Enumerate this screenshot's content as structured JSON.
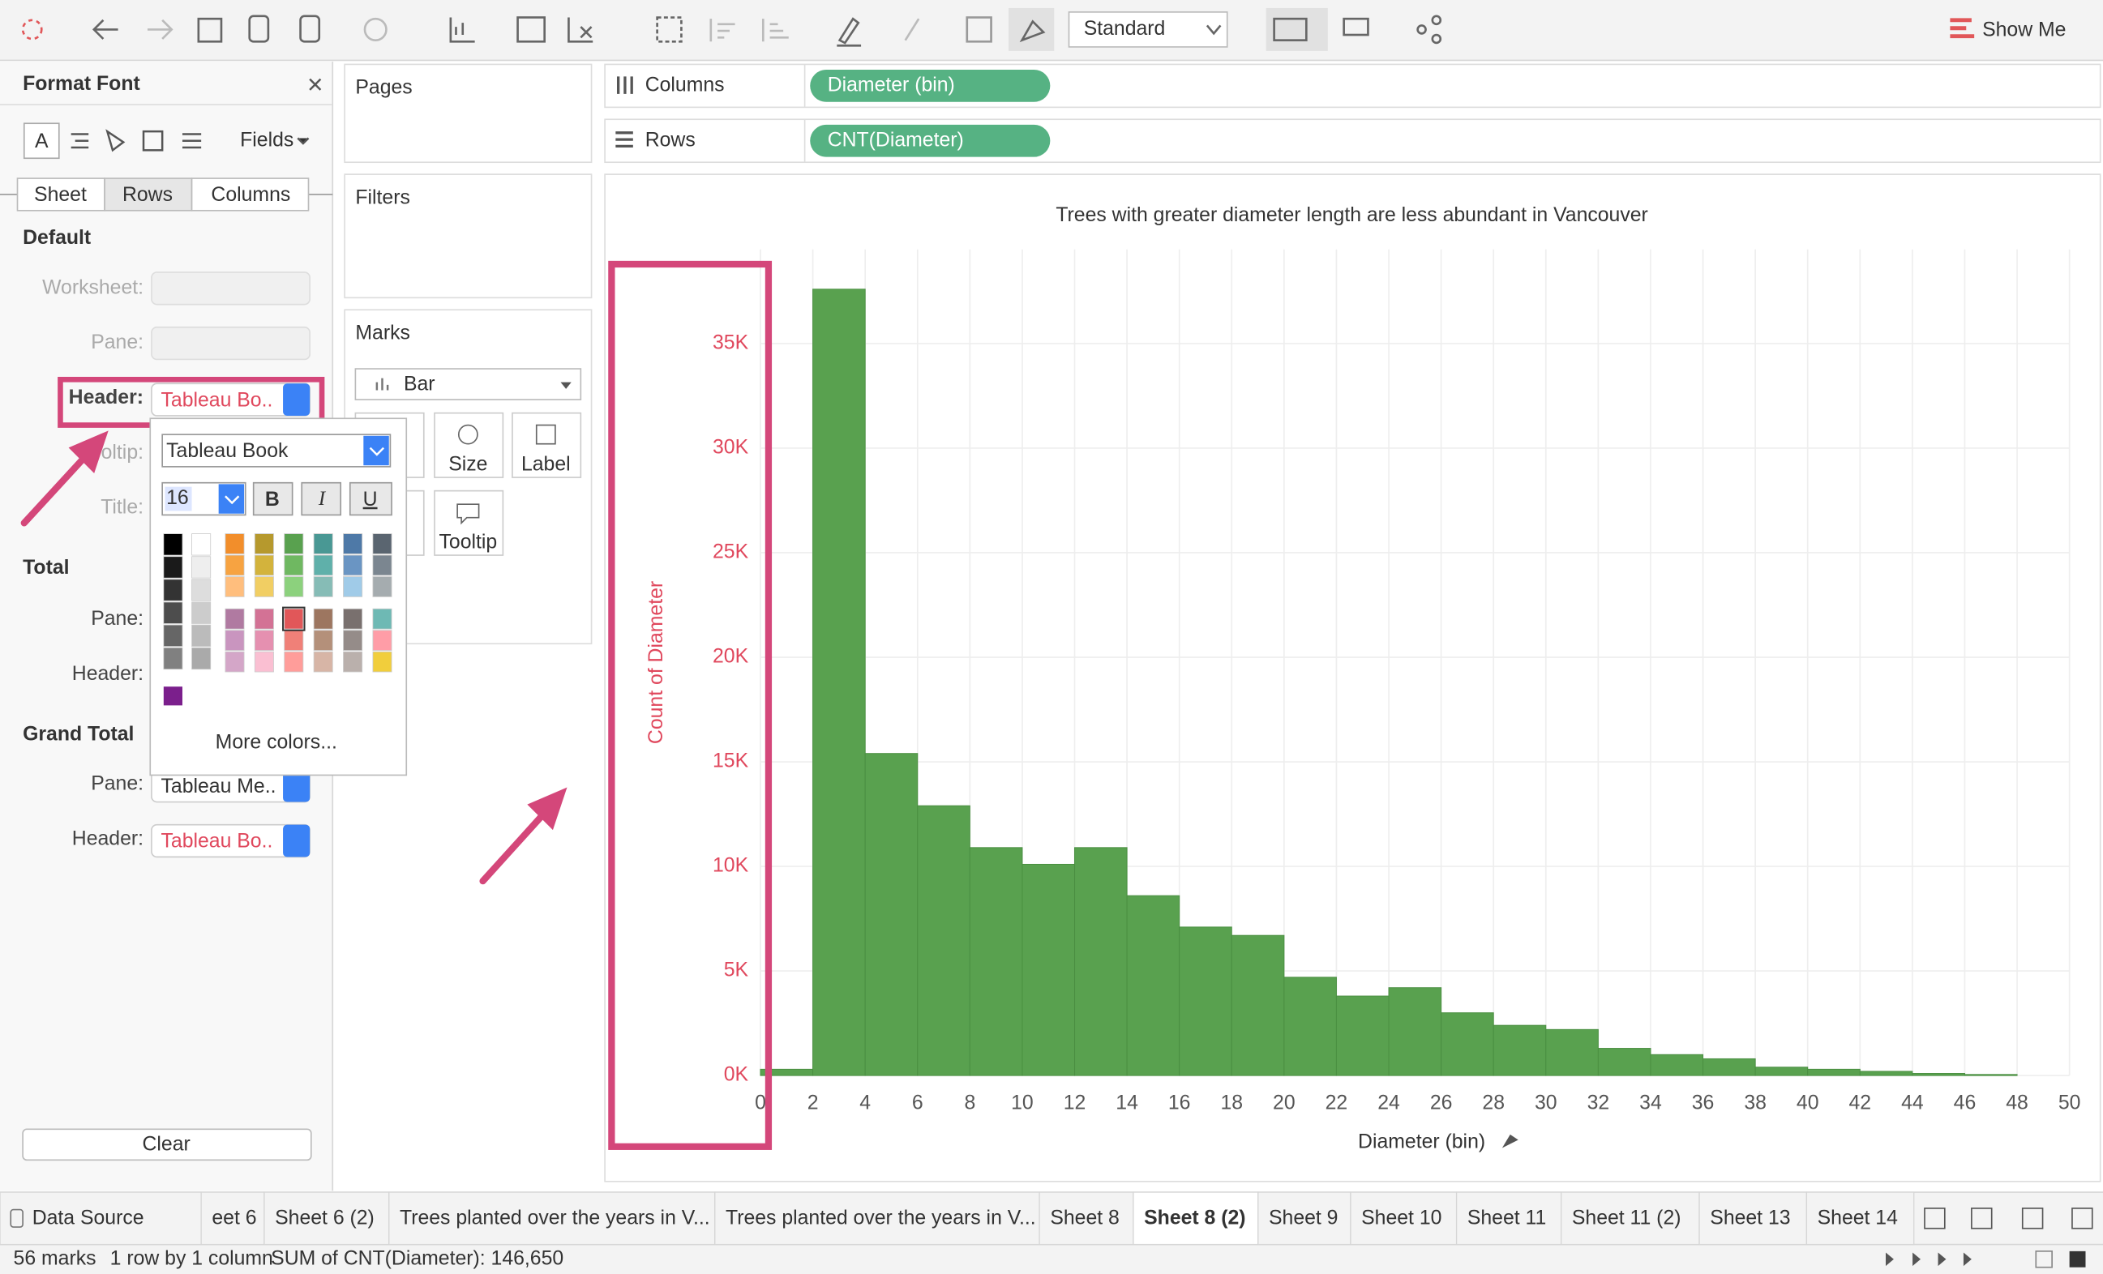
{
  "toolbar": {
    "fit": "Standard",
    "show_me": "Show Me"
  },
  "format_panel": {
    "title": "Format Font",
    "fields": "Fields",
    "tabs": [
      "Sheet",
      "Rows",
      "Columns"
    ],
    "default_heading": "Default",
    "worksheet": "Worksheet:",
    "pane": "Pane:",
    "header": "Header:",
    "header_value": "Tableau Bo..",
    "tooltip": "Tooltip:",
    "title_label": "Title:",
    "total_heading": "Total",
    "total_pane": "Pane:",
    "total_header": "Header:",
    "grand_total_heading": "Grand Total",
    "grand_pane": "Pane:",
    "grand_pane_value": "Tableau Me..",
    "grand_header": "Header:",
    "grand_header_value": "Tableau Bo..",
    "clear": "Clear"
  },
  "font_popup": {
    "font": "Tableau Book",
    "size": "16",
    "bold": "B",
    "italic": "I",
    "underline": "U",
    "more_colors": "More colors..."
  },
  "shelves": {
    "pages": "Pages",
    "filters": "Filters",
    "marks": "Marks",
    "mark_type": "Bar",
    "mark_buttons": [
      "Size",
      "Label",
      "Tooltip"
    ],
    "columns_label": "Columns",
    "columns_pill": "Diameter (bin)",
    "rows_label": "Rows",
    "rows_pill": "CNT(Diameter)"
  },
  "sheet_tabs": [
    "Data Source",
    "eet 6",
    "Sheet 6 (2)",
    "Trees planted over the years in V...",
    "Trees planted over the years in V...",
    "Sheet 8",
    "Sheet 8 (2)",
    "Sheet 9",
    "Sheet 10",
    "Sheet 11",
    "Sheet 11 (2)",
    "Sheet 13",
    "Sheet 14"
  ],
  "status": [
    "56 marks",
    "1 row by 1 column",
    "SUM of CNT(Diameter): 146,650"
  ],
  "chart_data": {
    "type": "histogram",
    "title": "Trees with greater diameter length are less abundant in Vancouver",
    "x_label": "Diameter (bin)",
    "y_label": "Count of Diameter",
    "bins": [
      0,
      2,
      4,
      6,
      8,
      10,
      12,
      14,
      16,
      18,
      20,
      22,
      24,
      26,
      28,
      30,
      32,
      34,
      36,
      38,
      40,
      42,
      44,
      46,
      48,
      50
    ],
    "values": [
      300,
      37600,
      15400,
      12900,
      10900,
      10100,
      10900,
      8600,
      7100,
      6700,
      4700,
      3800,
      4200,
      3000,
      2400,
      2200,
      1300,
      1000,
      800,
      400,
      300,
      200,
      100,
      50,
      0
    ],
    "color": "#59a14f",
    "xlim": [
      0,
      50
    ],
    "xticks": [
      0,
      2,
      4,
      6,
      8,
      10,
      12,
      14,
      16,
      18,
      20,
      22,
      24,
      26,
      28,
      30,
      32,
      34,
      36,
      38,
      40,
      42,
      44,
      46,
      48,
      50
    ],
    "ylim": [
      0,
      39500
    ],
    "yticks": [
      {
        "value": 0,
        "label": "0K"
      },
      {
        "value": 5000,
        "label": "5K"
      },
      {
        "value": 10000,
        "label": "10K"
      },
      {
        "value": 15000,
        "label": "15K"
      },
      {
        "value": 20000,
        "label": "20K"
      },
      {
        "value": 25000,
        "label": "25K"
      },
      {
        "value": 30000,
        "label": "30K"
      },
      {
        "value": 35000,
        "label": "35K"
      }
    ],
    "grid": true
  }
}
